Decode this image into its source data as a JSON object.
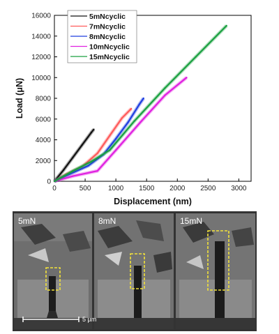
{
  "chart_data": {
    "type": "line",
    "xlabel": "Displacement (nm)",
    "ylabel": "Load (μN)",
    "xlim": [
      0,
      3200
    ],
    "ylim": [
      0,
      16000
    ],
    "xticks": [
      "0",
      "500",
      "1000",
      "1500",
      "2000",
      "2500",
      "3000"
    ],
    "yticks": [
      "0",
      "2000",
      "4000",
      "6000",
      "8000",
      "10000",
      "12000",
      "14000",
      "16000"
    ],
    "legend_position": "top-left",
    "series": [
      {
        "name": "5mNcyclic",
        "color": "#111111",
        "x": [
          0,
          150,
          300,
          450,
          600,
          640
        ],
        "y": [
          0,
          1100,
          2300,
          3500,
          4700,
          5000
        ]
      },
      {
        "name": "7mNcyclic",
        "color": "#ff5a5a",
        "x": [
          0,
          200,
          450,
          700,
          900,
          1100,
          1250
        ],
        "y": [
          0,
          700,
          1400,
          2700,
          4400,
          6100,
          7000
        ]
      },
      {
        "name": "8mNcyclic",
        "color": "#1f3fe0",
        "x": [
          0,
          250,
          550,
          800,
          1000,
          1200,
          1380,
          1450
        ],
        "y": [
          0,
          700,
          1500,
          2600,
          4100,
          5700,
          7400,
          8000
        ]
      },
      {
        "name": "10mNcyclic",
        "color": "#e020e0",
        "x": [
          0,
          300,
          700,
          1000,
          1400,
          1800,
          2150
        ],
        "y": [
          0,
          500,
          1000,
          3000,
          5700,
          8300,
          10000
        ]
      },
      {
        "name": "15mNcyclic",
        "color": "#1aa040",
        "x": [
          0,
          300,
          600,
          900,
          1300,
          1800,
          2300,
          2800
        ],
        "y": [
          0,
          1000,
          1900,
          3000,
          5800,
          9000,
          12000,
          15000
        ]
      }
    ]
  },
  "micrographs": {
    "panels": [
      {
        "label": "5mN"
      },
      {
        "label": "8mN"
      },
      {
        "label": "15mN"
      }
    ],
    "scale_bar": "5 µm",
    "box_color": "#f2e23a"
  }
}
